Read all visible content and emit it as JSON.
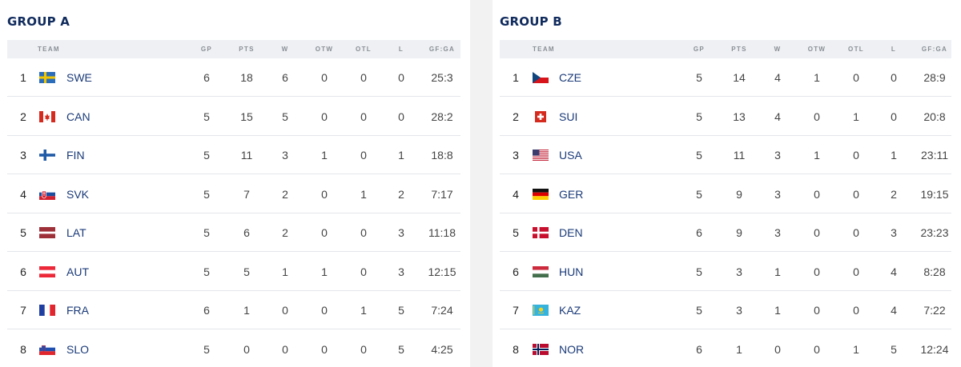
{
  "columns": [
    "TEAM",
    "GP",
    "PTS",
    "W",
    "OTW",
    "OTL",
    "L",
    "GF:GA"
  ],
  "groups": [
    {
      "title": "GROUP A",
      "rows": [
        {
          "rank": "1",
          "team": "SWE",
          "flag": "sweden-flag-icon",
          "gp": "6",
          "pts": "18",
          "w": "6",
          "otw": "0",
          "otl": "0",
          "l": "0",
          "gfga": "25:3"
        },
        {
          "rank": "2",
          "team": "CAN",
          "flag": "canada-flag-icon",
          "gp": "5",
          "pts": "15",
          "w": "5",
          "otw": "0",
          "otl": "0",
          "l": "0",
          "gfga": "28:2"
        },
        {
          "rank": "3",
          "team": "FIN",
          "flag": "finland-flag-icon",
          "gp": "5",
          "pts": "11",
          "w": "3",
          "otw": "1",
          "otl": "0",
          "l": "1",
          "gfga": "18:8"
        },
        {
          "rank": "4",
          "team": "SVK",
          "flag": "slovakia-flag-icon",
          "gp": "5",
          "pts": "7",
          "w": "2",
          "otw": "0",
          "otl": "1",
          "l": "2",
          "gfga": "7:17"
        },
        {
          "rank": "5",
          "team": "LAT",
          "flag": "latvia-flag-icon",
          "gp": "5",
          "pts": "6",
          "w": "2",
          "otw": "0",
          "otl": "0",
          "l": "3",
          "gfga": "11:18"
        },
        {
          "rank": "6",
          "team": "AUT",
          "flag": "austria-flag-icon",
          "gp": "5",
          "pts": "5",
          "w": "1",
          "otw": "1",
          "otl": "0",
          "l": "3",
          "gfga": "12:15"
        },
        {
          "rank": "7",
          "team": "FRA",
          "flag": "france-flag-icon",
          "gp": "6",
          "pts": "1",
          "w": "0",
          "otw": "0",
          "otl": "1",
          "l": "5",
          "gfga": "7:24"
        },
        {
          "rank": "8",
          "team": "SLO",
          "flag": "slovenia-flag-icon",
          "gp": "5",
          "pts": "0",
          "w": "0",
          "otw": "0",
          "otl": "0",
          "l": "5",
          "gfga": "4:25"
        }
      ]
    },
    {
      "title": "GROUP B",
      "rows": [
        {
          "rank": "1",
          "team": "CZE",
          "flag": "czechia-flag-icon",
          "gp": "5",
          "pts": "14",
          "w": "4",
          "otw": "1",
          "otl": "0",
          "l": "0",
          "gfga": "28:9"
        },
        {
          "rank": "2",
          "team": "SUI",
          "flag": "switzerland-flag-icon",
          "gp": "5",
          "pts": "13",
          "w": "4",
          "otw": "0",
          "otl": "1",
          "l": "0",
          "gfga": "20:8"
        },
        {
          "rank": "3",
          "team": "USA",
          "flag": "usa-flag-icon",
          "gp": "5",
          "pts": "11",
          "w": "3",
          "otw": "1",
          "otl": "0",
          "l": "1",
          "gfga": "23:11"
        },
        {
          "rank": "4",
          "team": "GER",
          "flag": "germany-flag-icon",
          "gp": "5",
          "pts": "9",
          "w": "3",
          "otw": "0",
          "otl": "0",
          "l": "2",
          "gfga": "19:15"
        },
        {
          "rank": "5",
          "team": "DEN",
          "flag": "denmark-flag-icon",
          "gp": "6",
          "pts": "9",
          "w": "3",
          "otw": "0",
          "otl": "0",
          "l": "3",
          "gfga": "23:23"
        },
        {
          "rank": "6",
          "team": "HUN",
          "flag": "hungary-flag-icon",
          "gp": "5",
          "pts": "3",
          "w": "1",
          "otw": "0",
          "otl": "0",
          "l": "4",
          "gfga": "8:28"
        },
        {
          "rank": "7",
          "team": "KAZ",
          "flag": "kazakhstan-flag-icon",
          "gp": "5",
          "pts": "3",
          "w": "1",
          "otw": "0",
          "otl": "0",
          "l": "4",
          "gfga": "7:22"
        },
        {
          "rank": "8",
          "team": "NOR",
          "flag": "norway-flag-icon",
          "gp": "6",
          "pts": "1",
          "w": "0",
          "otw": "0",
          "otl": "1",
          "l": "5",
          "gfga": "12:24"
        }
      ]
    }
  ],
  "colors": {
    "title": "#0f2a5c",
    "team_link": "#1a3a78",
    "header_bg": "#eef0f3",
    "divider": "#e4e6ea"
  }
}
